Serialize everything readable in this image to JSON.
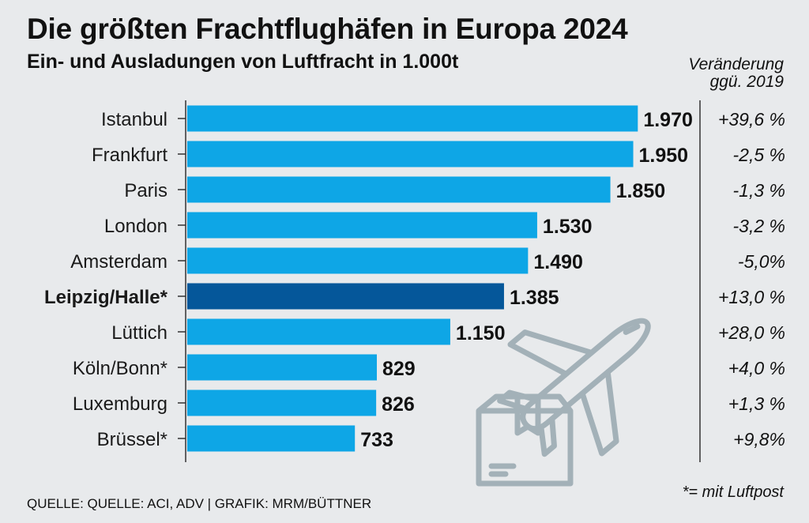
{
  "chart_data": {
    "type": "bar",
    "orientation": "horizontal",
    "title": "Die größten Frachtflughäfen in Europa 2024",
    "subtitle": "Ein- und Ausladungen von Luftfracht in 1.000t",
    "change_header": [
      "Veränderung",
      "ggü. 2019"
    ],
    "categories": [
      "Istanbul",
      "Frankfurt",
      "Paris",
      "London",
      "Amsterdam",
      "Leipzig/Halle*",
      "Lüttich",
      "Köln/Bonn*",
      "Luxemburg",
      "Brüssel*"
    ],
    "values": [
      1970,
      1950,
      1850,
      1530,
      1490,
      1385,
      1150,
      829,
      826,
      733
    ],
    "value_labels": [
      "1.970",
      "1.950",
      "1.850",
      "1.530",
      "1.490",
      "1.385",
      "1.150",
      "829",
      "826",
      "733"
    ],
    "changes": [
      "+39,6 %",
      "-2,5 %",
      "-1,3 %",
      "-3,2 %",
      "-5,0%",
      "+13,0 %",
      "+28,0 %",
      "+4,0 %",
      "+1,3 %",
      "+9,8%"
    ],
    "highlight": "Leipzig/Halle*",
    "xlim": [
      0,
      2000
    ],
    "colors": {
      "bar": "#0ea6e6",
      "highlight": "#05579a",
      "axis": "#333333",
      "icon": "#a3b1b8"
    }
  },
  "footer": {
    "source": "QUELLE: QUELLE: ACI, ADV | GRAFIK: MRM/BÜTTNER",
    "footnote": "*= mit Luftpost"
  },
  "illustration": {
    "icon": "plane-parcel-icon"
  }
}
